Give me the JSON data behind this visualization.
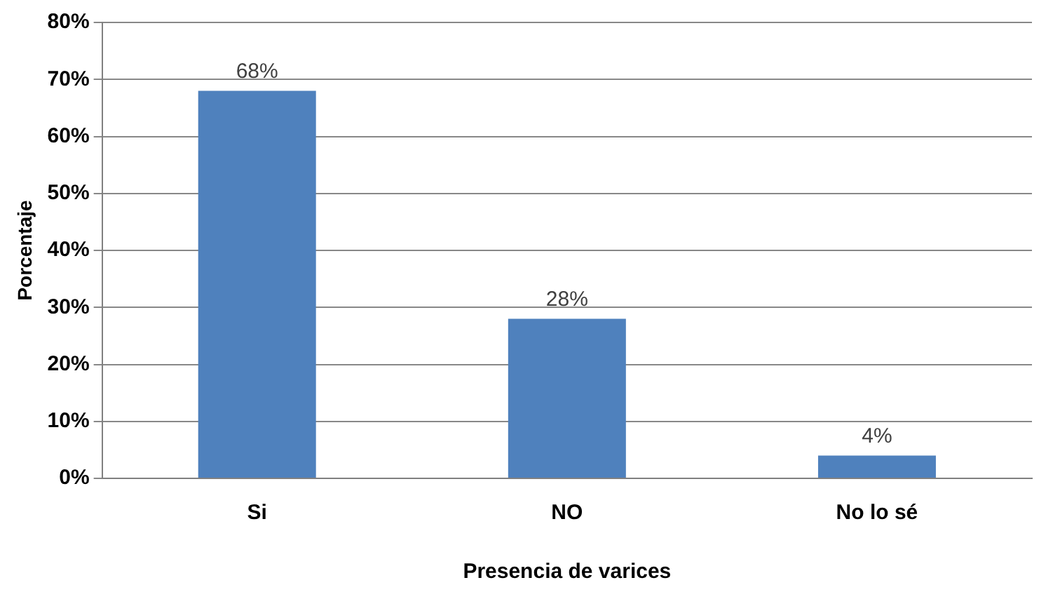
{
  "chart_data": {
    "type": "bar",
    "categories": [
      "Si",
      "NO",
      "No lo sé"
    ],
    "values": [
      68,
      28,
      4
    ],
    "value_labels": [
      "68%",
      "28%",
      "4%"
    ],
    "color": "#4f81bd",
    "xlabel": "Presencia de varices",
    "ylabel": "Porcentaje",
    "ylim": [
      0,
      80
    ],
    "yticks": [
      {
        "value": 0,
        "label": "0%"
      },
      {
        "value": 10,
        "label": "10%"
      },
      {
        "value": 20,
        "label": "20%"
      },
      {
        "value": 30,
        "label": "30%"
      },
      {
        "value": 40,
        "label": "40%"
      },
      {
        "value": 50,
        "label": "50%"
      },
      {
        "value": 60,
        "label": "60%"
      },
      {
        "value": 70,
        "label": "70%"
      },
      {
        "value": 80,
        "label": "80%"
      }
    ],
    "grid": "y"
  }
}
